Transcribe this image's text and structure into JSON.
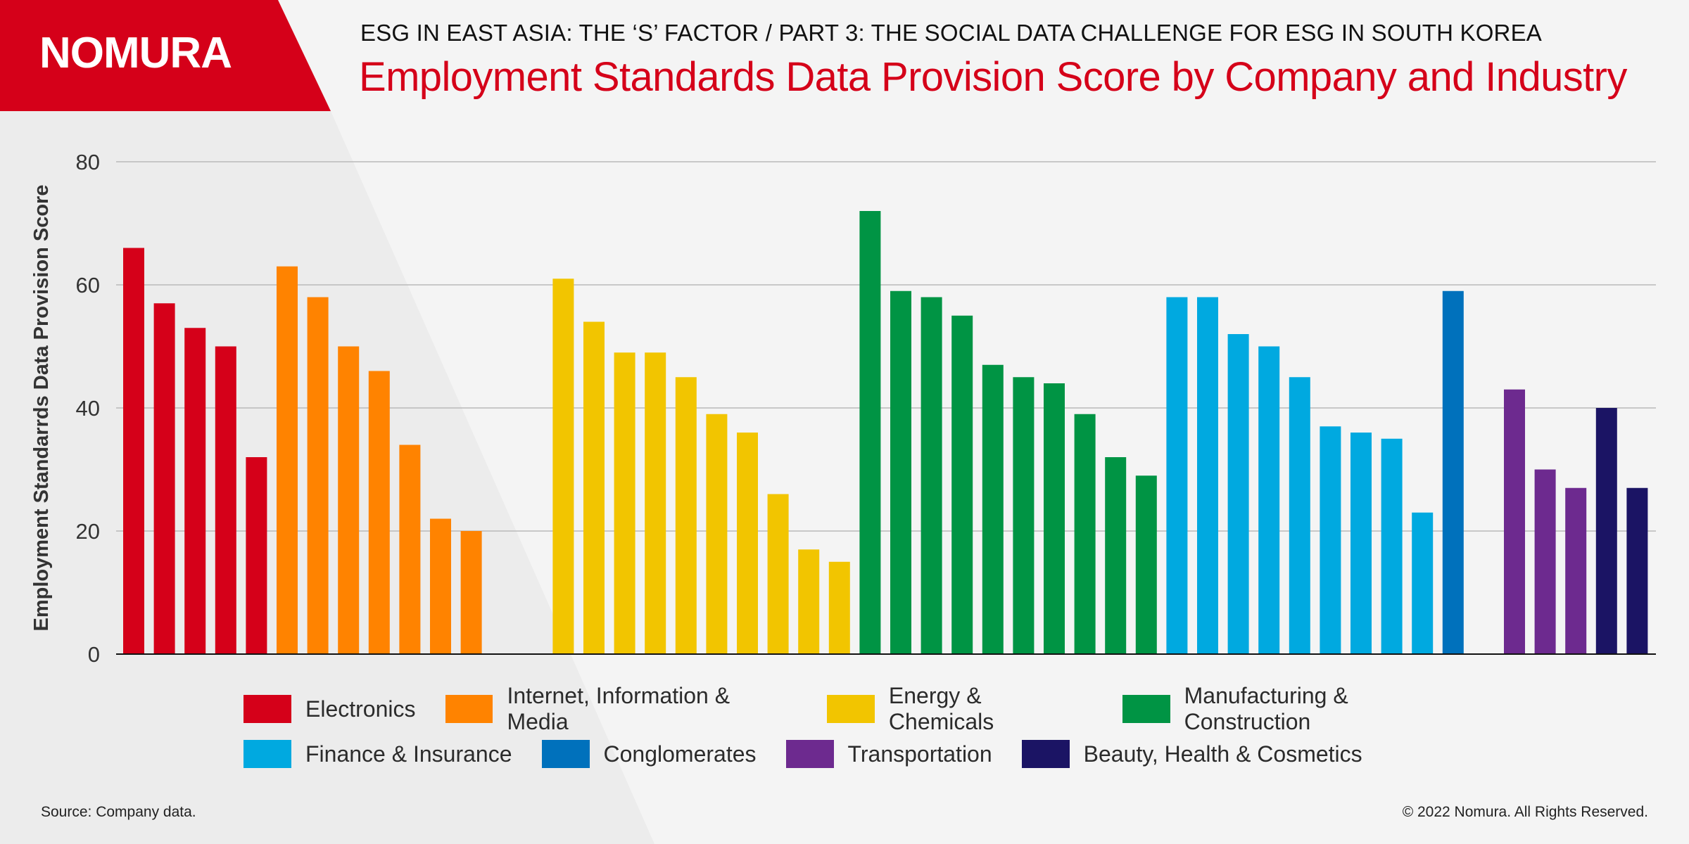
{
  "brand": {
    "logo_text": "NOMURA",
    "brand_color": "#d50019"
  },
  "header": {
    "subtitle": "ESG IN EAST ASIA: THE ‘S’ FACTOR / PART 3: THE SOCIAL DATA CHALLENGE FOR ESG IN SOUTH KOREA",
    "title": "Employment Standards Data Provision Score by Company and Industry"
  },
  "footer": {
    "source": "Source: Company data.",
    "copyright": "© 2022 Nomura. All Rights Reserved."
  },
  "chart_data": {
    "type": "bar",
    "ylabel": "Employment Standarrds Data Provision Score",
    "xlabel": "",
    "ylim": [
      0,
      80
    ],
    "yticks": [
      0,
      20,
      40,
      60,
      80
    ],
    "grid": true,
    "legend_position": "bottom",
    "series": [
      {
        "name": "Electronics",
        "color": "#d50019",
        "values": [
          66,
          57,
          53,
          50,
          32
        ]
      },
      {
        "name": "Internet, Information & Media",
        "color": "#ff8300",
        "values": [
          63,
          58,
          50,
          46,
          34,
          22,
          20
        ]
      },
      {
        "name": "Energy & Chemicals",
        "color": "#f2c500",
        "values": [
          61,
          54,
          49,
          49,
          45,
          39,
          36,
          26,
          17,
          15
        ]
      },
      {
        "name": "Manufacturing & Construction",
        "color": "#009444",
        "values": [
          72,
          59,
          58,
          55,
          47,
          45,
          44,
          39,
          32,
          29
        ]
      },
      {
        "name": "Finance & Insurance",
        "color": "#00a9e0",
        "values": [
          58,
          58,
          52,
          50,
          45,
          37,
          36,
          35,
          23
        ]
      },
      {
        "name": "Conglomerates",
        "color": "#0071bc",
        "values": [
          59
        ]
      },
      {
        "name": "Transportation",
        "color": "#6d2a8f",
        "values": [
          43,
          30,
          27
        ]
      },
      {
        "name": "Beauty, Health & Cosmetics",
        "color": "#1b1464",
        "values": [
          40,
          27
        ]
      }
    ]
  }
}
